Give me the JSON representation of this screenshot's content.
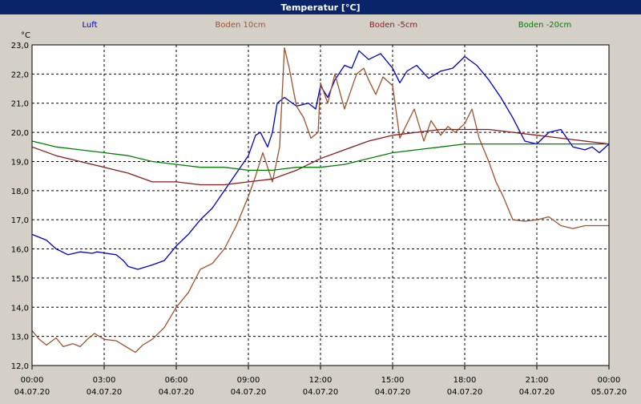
{
  "window": {
    "title": "Temperatur [°C]"
  },
  "colors": {
    "title_bar": "#0a246a",
    "title_text": "#ffffff",
    "background": "#d4d0c8",
    "plot_area": "#ffffff",
    "grid": "#000000"
  },
  "chart_data": {
    "type": "line",
    "title": "Temperatur [°C]",
    "ylabel": "°C",
    "ylim": [
      12.0,
      23.0
    ],
    "yticks": [
      "23,0",
      "22,0",
      "21,0",
      "20,0",
      "19,0",
      "18,0",
      "17,0",
      "16,0",
      "15,0",
      "14,0",
      "13,0",
      "12,0"
    ],
    "ytick_values": [
      23,
      22,
      21,
      20,
      19,
      18,
      17,
      16,
      15,
      14,
      13,
      12
    ],
    "xlim": [
      0,
      24
    ],
    "xticks": [
      {
        "time": "00:00",
        "date": "04.07.20"
      },
      {
        "time": "03:00",
        "date": "04.07.20"
      },
      {
        "time": "06:00",
        "date": "04.07.20"
      },
      {
        "time": "09:00",
        "date": "04.07.20"
      },
      {
        "time": "12:00",
        "date": "04.07.20"
      },
      {
        "time": "15:00",
        "date": "04.07.20"
      },
      {
        "time": "18:00",
        "date": "04.07.20"
      },
      {
        "time": "21:00",
        "date": "04.07.20"
      },
      {
        "time": "00:00",
        "date": "05.07.20"
      }
    ],
    "xtick_values": [
      0,
      3,
      6,
      9,
      12,
      15,
      18,
      21,
      24
    ],
    "grid": true,
    "legend_placement": "top",
    "series": [
      {
        "name": "Luft",
        "color": "#0000cc",
        "points": [
          [
            0.0,
            16.5
          ],
          [
            0.6,
            16.3
          ],
          [
            1.0,
            16.0
          ],
          [
            1.5,
            15.8
          ],
          [
            2.0,
            15.9
          ],
          [
            2.5,
            15.85
          ],
          [
            2.7,
            15.9
          ],
          [
            3.5,
            15.8
          ],
          [
            3.8,
            15.6
          ],
          [
            4.0,
            15.4
          ],
          [
            4.4,
            15.3
          ],
          [
            5.0,
            15.45
          ],
          [
            5.5,
            15.6
          ],
          [
            6.0,
            16.1
          ],
          [
            6.5,
            16.5
          ],
          [
            7.0,
            17.0
          ],
          [
            7.5,
            17.4
          ],
          [
            8.0,
            18.0
          ],
          [
            8.5,
            18.6
          ],
          [
            9.0,
            19.2
          ],
          [
            9.3,
            19.9
          ],
          [
            9.5,
            20.0
          ],
          [
            9.8,
            19.5
          ],
          [
            10.0,
            20.0
          ],
          [
            10.2,
            21.0
          ],
          [
            10.5,
            21.2
          ],
          [
            11.0,
            20.9
          ],
          [
            11.5,
            21.0
          ],
          [
            11.8,
            20.8
          ],
          [
            12.0,
            21.6
          ],
          [
            12.3,
            21.2
          ],
          [
            12.6,
            21.8
          ],
          [
            13.0,
            22.3
          ],
          [
            13.3,
            22.2
          ],
          [
            13.6,
            22.8
          ],
          [
            14.0,
            22.5
          ],
          [
            14.5,
            22.7
          ],
          [
            15.0,
            22.2
          ],
          [
            15.3,
            21.7
          ],
          [
            15.6,
            22.1
          ],
          [
            16.0,
            22.3
          ],
          [
            16.5,
            21.85
          ],
          [
            17.0,
            22.1
          ],
          [
            17.5,
            22.2
          ],
          [
            18.0,
            22.6
          ],
          [
            18.5,
            22.3
          ],
          [
            19.0,
            21.8
          ],
          [
            19.5,
            21.2
          ],
          [
            20.0,
            20.5
          ],
          [
            20.5,
            19.7
          ],
          [
            21.0,
            19.6
          ],
          [
            21.5,
            20.0
          ],
          [
            22.0,
            20.1
          ],
          [
            22.5,
            19.5
          ],
          [
            23.0,
            19.4
          ],
          [
            23.3,
            19.5
          ],
          [
            23.6,
            19.3
          ],
          [
            24.0,
            19.6
          ]
        ]
      },
      {
        "name": "Boden 10cm",
        "color": "#a0522d",
        "points": [
          [
            0.0,
            13.2
          ],
          [
            0.3,
            12.9
          ],
          [
            0.6,
            12.7
          ],
          [
            1.0,
            12.95
          ],
          [
            1.3,
            12.65
          ],
          [
            1.7,
            12.75
          ],
          [
            2.0,
            12.65
          ],
          [
            2.3,
            12.9
          ],
          [
            2.6,
            13.1
          ],
          [
            3.0,
            12.9
          ],
          [
            3.5,
            12.85
          ],
          [
            4.0,
            12.6
          ],
          [
            4.3,
            12.45
          ],
          [
            4.6,
            12.7
          ],
          [
            5.0,
            12.9
          ],
          [
            5.5,
            13.3
          ],
          [
            6.0,
            14.0
          ],
          [
            6.5,
            14.5
          ],
          [
            7.0,
            15.3
          ],
          [
            7.5,
            15.5
          ],
          [
            8.0,
            16.0
          ],
          [
            8.5,
            16.8
          ],
          [
            9.0,
            17.8
          ],
          [
            9.3,
            18.5
          ],
          [
            9.6,
            19.3
          ],
          [
            10.0,
            18.3
          ],
          [
            10.3,
            19.5
          ],
          [
            10.5,
            22.9
          ],
          [
            10.7,
            22.2
          ],
          [
            11.0,
            20.9
          ],
          [
            11.3,
            20.5
          ],
          [
            11.6,
            19.8
          ],
          [
            11.9,
            20.0
          ],
          [
            12.0,
            21.7
          ],
          [
            12.3,
            21.0
          ],
          [
            12.6,
            22.0
          ],
          [
            13.0,
            20.8
          ],
          [
            13.5,
            22.0
          ],
          [
            13.8,
            22.2
          ],
          [
            14.0,
            21.8
          ],
          [
            14.3,
            21.3
          ],
          [
            14.6,
            21.9
          ],
          [
            15.0,
            21.6
          ],
          [
            15.3,
            19.8
          ],
          [
            15.6,
            20.3
          ],
          [
            15.9,
            20.8
          ],
          [
            16.3,
            19.7
          ],
          [
            16.6,
            20.4
          ],
          [
            17.0,
            19.9
          ],
          [
            17.3,
            20.2
          ],
          [
            17.6,
            20.0
          ],
          [
            18.0,
            20.3
          ],
          [
            18.3,
            20.8
          ],
          [
            18.6,
            19.8
          ],
          [
            19.0,
            19.0
          ],
          [
            19.3,
            18.3
          ],
          [
            19.6,
            17.8
          ],
          [
            20.0,
            17.0
          ],
          [
            20.5,
            16.95
          ],
          [
            21.0,
            17.0
          ],
          [
            21.5,
            17.1
          ],
          [
            22.0,
            16.8
          ],
          [
            22.5,
            16.7
          ],
          [
            23.0,
            16.8
          ],
          [
            23.5,
            16.8
          ],
          [
            24.0,
            16.8
          ]
        ]
      },
      {
        "name": "Boden -5cm",
        "color": "#8b1a1a",
        "points": [
          [
            0.0,
            19.5
          ],
          [
            1.0,
            19.2
          ],
          [
            2.0,
            19.0
          ],
          [
            3.0,
            18.8
          ],
          [
            4.0,
            18.6
          ],
          [
            5.0,
            18.3
          ],
          [
            6.0,
            18.3
          ],
          [
            7.0,
            18.2
          ],
          [
            8.0,
            18.2
          ],
          [
            9.0,
            18.3
          ],
          [
            10.0,
            18.4
          ],
          [
            11.0,
            18.7
          ],
          [
            12.0,
            19.1
          ],
          [
            13.0,
            19.4
          ],
          [
            14.0,
            19.7
          ],
          [
            15.0,
            19.9
          ],
          [
            16.0,
            20.0
          ],
          [
            17.0,
            20.1
          ],
          [
            18.0,
            20.1
          ],
          [
            19.0,
            20.1
          ],
          [
            20.0,
            20.0
          ],
          [
            21.0,
            19.9
          ],
          [
            22.0,
            19.8
          ],
          [
            23.0,
            19.7
          ],
          [
            24.0,
            19.6
          ]
        ]
      },
      {
        "name": "Boden -20cm",
        "color": "#008000",
        "points": [
          [
            0.0,
            19.7
          ],
          [
            1.0,
            19.5
          ],
          [
            2.0,
            19.4
          ],
          [
            3.0,
            19.3
          ],
          [
            4.0,
            19.2
          ],
          [
            5.0,
            19.0
          ],
          [
            6.0,
            18.9
          ],
          [
            7.0,
            18.8
          ],
          [
            8.0,
            18.8
          ],
          [
            9.0,
            18.7
          ],
          [
            10.0,
            18.7
          ],
          [
            11.0,
            18.8
          ],
          [
            12.0,
            18.8
          ],
          [
            13.0,
            18.9
          ],
          [
            14.0,
            19.1
          ],
          [
            15.0,
            19.3
          ],
          [
            16.0,
            19.4
          ],
          [
            17.0,
            19.5
          ],
          [
            18.0,
            19.6
          ],
          [
            19.0,
            19.6
          ],
          [
            20.0,
            19.6
          ],
          [
            21.0,
            19.6
          ],
          [
            22.0,
            19.6
          ],
          [
            23.0,
            19.6
          ],
          [
            24.0,
            19.6
          ]
        ]
      }
    ]
  }
}
